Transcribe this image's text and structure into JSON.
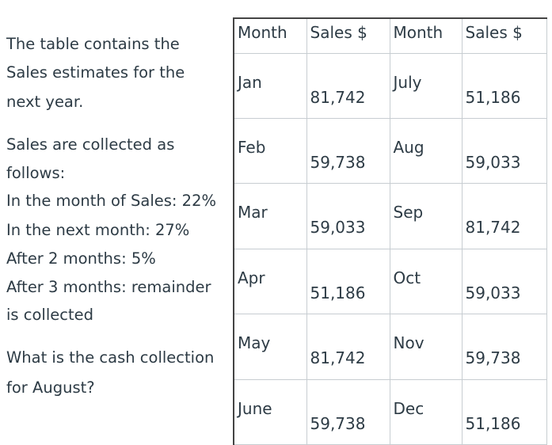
{
  "question": {
    "lines": [
      "The table contains the",
      "Sales estimates for the",
      "next year.",
      "Sales are collected as",
      "follows:",
      "In the month of Sales: 22%",
      "In the next month: 27%",
      "After 2 months: 5%",
      "After 3 months: remainder",
      "is collected",
      "What is the cash collection",
      "for August?"
    ]
  },
  "table": {
    "headers": [
      "Month",
      "Sales $",
      "Month",
      "Sales $"
    ],
    "rows": [
      {
        "month1": "Jan",
        "sales1": "81,742",
        "month2": "July",
        "sales2": "51,186"
      },
      {
        "month1": "Feb",
        "sales1": "59,738",
        "month2": "Aug",
        "sales2": "59,033"
      },
      {
        "month1": "Mar",
        "sales1": "59,033",
        "month2": "Sep",
        "sales2": "81,742"
      },
      {
        "month1": "Apr",
        "sales1": "51,186",
        "month2": "Oct",
        "sales2": "59,033"
      },
      {
        "month1": "May",
        "sales1": "81,742",
        "month2": "Nov",
        "sales2": "59,738"
      },
      {
        "month1": "June",
        "sales1": "59,738",
        "month2": "Dec",
        "sales2": "51,186"
      }
    ]
  }
}
